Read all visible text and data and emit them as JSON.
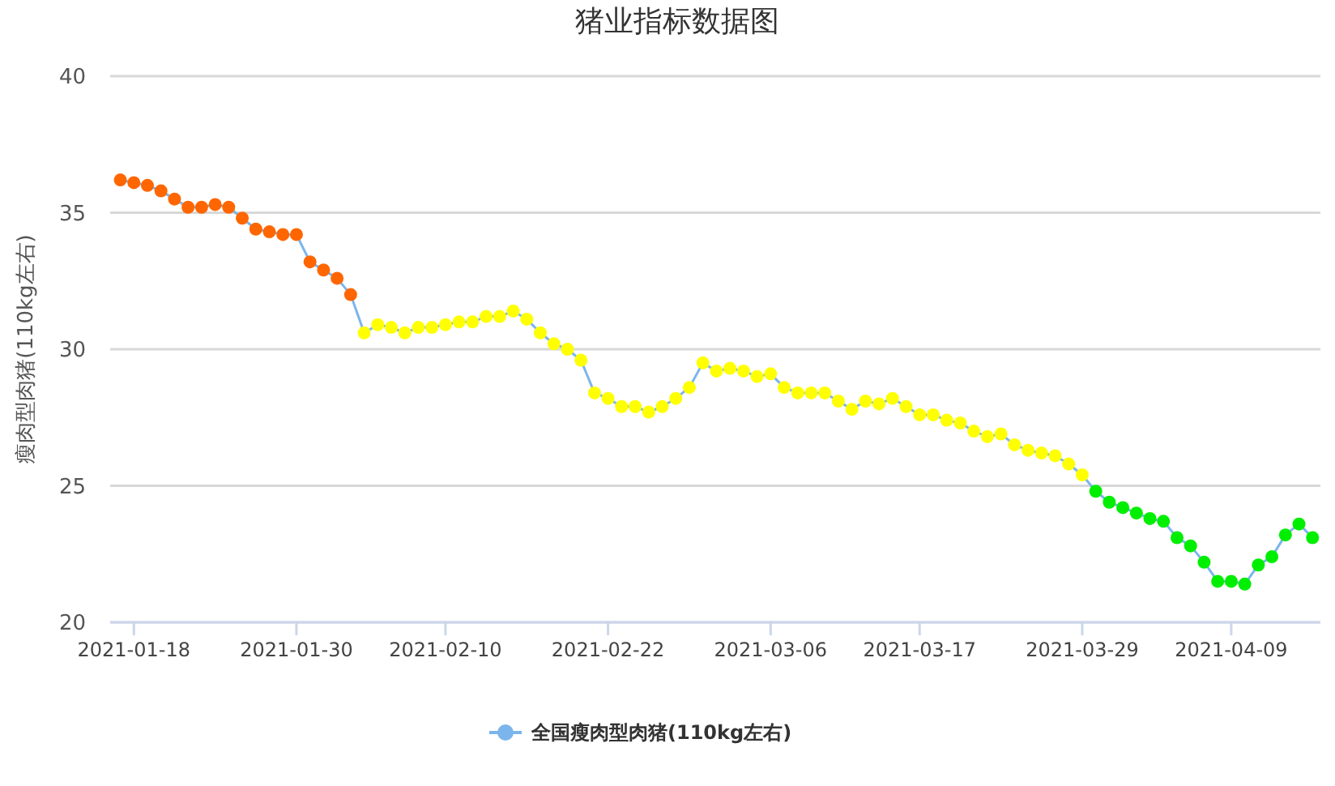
{
  "chart_data": {
    "type": "line",
    "title": "猪业指标数据图",
    "ylabel": "瘦肉型肉猪(110kg左右)",
    "x": [
      "2021-01-17",
      "2021-01-18",
      "2021-01-19",
      "2021-01-20",
      "2021-01-21",
      "2021-01-22",
      "2021-01-23",
      "2021-01-24",
      "2021-01-25",
      "2021-01-26",
      "2021-01-27",
      "2021-01-28",
      "2021-01-29",
      "2021-01-30",
      "2021-01-31",
      "2021-02-01",
      "2021-02-02",
      "2021-02-03",
      "2021-02-04",
      "2021-02-05",
      "2021-02-06",
      "2021-02-07",
      "2021-02-08",
      "2021-02-09",
      "2021-02-10",
      "2021-02-11",
      "2021-02-12",
      "2021-02-13",
      "2021-02-14",
      "2021-02-15",
      "2021-02-16",
      "2021-02-17",
      "2021-02-18",
      "2021-02-19",
      "2021-02-20",
      "2021-02-21",
      "2021-02-22",
      "2021-02-23",
      "2021-02-24",
      "2021-02-25",
      "2021-02-26",
      "2021-02-27",
      "2021-02-28",
      "2021-03-01",
      "2021-03-02",
      "2021-03-03",
      "2021-03-04",
      "2021-03-05",
      "2021-03-06",
      "2021-03-07",
      "2021-03-08",
      "2021-03-09",
      "2021-03-10",
      "2021-03-11",
      "2021-03-12",
      "2021-03-13",
      "2021-03-14",
      "2021-03-15",
      "2021-03-16",
      "2021-03-17",
      "2021-03-18",
      "2021-03-19",
      "2021-03-20",
      "2021-03-21",
      "2021-03-22",
      "2021-03-23",
      "2021-03-24",
      "2021-03-25",
      "2021-03-26",
      "2021-03-27",
      "2021-03-28",
      "2021-03-29",
      "2021-03-30",
      "2021-03-31",
      "2021-04-01",
      "2021-04-02",
      "2021-04-03",
      "2021-04-04",
      "2021-04-05",
      "2021-04-06",
      "2021-04-07",
      "2021-04-08",
      "2021-04-09",
      "2021-04-10",
      "2021-04-11",
      "2021-04-12",
      "2021-04-13",
      "2021-04-14",
      "2021-04-15"
    ],
    "series": [
      {
        "name": "全国瘦肉型肉猪(110kg左右)",
        "color": "#7cb5ec",
        "values": [
          36.2,
          36.1,
          36.0,
          35.8,
          35.5,
          35.2,
          35.2,
          35.3,
          35.2,
          34.8,
          34.4,
          34.3,
          34.2,
          34.2,
          33.2,
          32.9,
          32.6,
          32.0,
          30.6,
          30.9,
          30.8,
          30.6,
          30.8,
          30.8,
          30.9,
          31.0,
          31.0,
          31.2,
          31.2,
          31.4,
          31.1,
          30.6,
          30.2,
          30.0,
          29.6,
          28.4,
          28.2,
          27.9,
          27.9,
          27.7,
          27.9,
          28.2,
          28.6,
          29.5,
          29.2,
          29.3,
          29.2,
          29.0,
          29.1,
          28.6,
          28.4,
          28.4,
          28.4,
          28.1,
          27.8,
          28.1,
          28.0,
          28.2,
          27.9,
          27.6,
          27.6,
          27.4,
          27.3,
          27.0,
          26.8,
          26.9,
          26.5,
          26.3,
          26.2,
          26.1,
          25.8,
          25.4,
          24.8,
          24.4,
          24.2,
          24.0,
          23.8,
          23.7,
          23.1,
          22.8,
          22.2,
          21.5,
          21.5,
          21.4,
          22.1,
          22.4,
          23.2,
          23.6,
          23.1
        ],
        "colors": [
          "#ff6600",
          "#ff6600",
          "#ff6600",
          "#ff6600",
          "#ff6600",
          "#ff6600",
          "#ff6600",
          "#ff6600",
          "#ff6600",
          "#ff6600",
          "#ff6600",
          "#ff6600",
          "#ff6600",
          "#ff6600",
          "#ff6600",
          "#ff6600",
          "#ff6600",
          "#ff6600",
          "#ffff00",
          "#ffff00",
          "#ffff00",
          "#ffff00",
          "#ffff00",
          "#ffff00",
          "#ffff00",
          "#ffff00",
          "#ffff00",
          "#ffff00",
          "#ffff00",
          "#ffff00",
          "#ffff00",
          "#ffff00",
          "#ffff00",
          "#ffff00",
          "#ffff00",
          "#ffff00",
          "#ffff00",
          "#ffff00",
          "#ffff00",
          "#ffff00",
          "#ffff00",
          "#ffff00",
          "#ffff00",
          "#ffff00",
          "#ffff00",
          "#ffff00",
          "#ffff00",
          "#ffff00",
          "#ffff00",
          "#ffff00",
          "#ffff00",
          "#ffff00",
          "#ffff00",
          "#ffff00",
          "#ffff00",
          "#ffff00",
          "#ffff00",
          "#ffff00",
          "#ffff00",
          "#ffff00",
          "#ffff00",
          "#ffff00",
          "#ffff00",
          "#ffff00",
          "#ffff00",
          "#ffff00",
          "#ffff00",
          "#ffff00",
          "#ffff00",
          "#ffff00",
          "#ffff00",
          "#ffff00",
          "#00ee00",
          "#00ee00",
          "#00ee00",
          "#00ee00",
          "#00ee00",
          "#00ee00",
          "#00ee00",
          "#00ee00",
          "#00ee00",
          "#00ee00",
          "#00ee00",
          "#00ee00",
          "#00ee00",
          "#00ee00",
          "#00ee00",
          "#00ee00",
          "#00ee00"
        ]
      }
    ],
    "xlim": [
      "2021-01-16T06:00",
      "2021-04-15T14:00"
    ],
    "xticks": [
      {
        "value": "2021-01-18",
        "label": "2021-01-18"
      },
      {
        "value": "2021-01-30",
        "label": "2021-01-30"
      },
      {
        "value": "2021-02-10",
        "label": "2021-02-10"
      },
      {
        "value": "2021-02-22",
        "label": "2021-02-22"
      },
      {
        "value": "2021-03-06",
        "label": "2021-03-06"
      },
      {
        "value": "2021-03-17",
        "label": "2021-03-17"
      },
      {
        "value": "2021-03-29",
        "label": "2021-03-29"
      },
      {
        "value": "2021-04-09",
        "label": "2021-04-09"
      }
    ],
    "ylim": [
      20,
      40
    ],
    "yticks": [
      20,
      25,
      30,
      35,
      40
    ],
    "grid": "y",
    "legend": "bottom",
    "marker": "circle",
    "line_style": "solid"
  }
}
